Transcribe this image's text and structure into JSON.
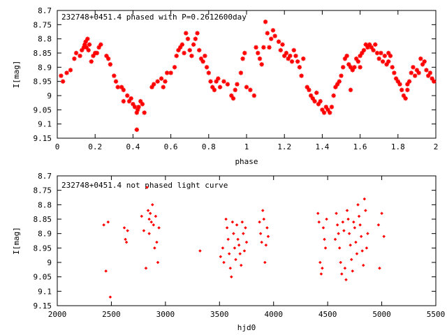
{
  "chart_data": [
    {
      "type": "scatter",
      "title": "232748+0451.4 phased with P=0.2612600day",
      "xlabel": "phase",
      "ylabel": "I[mag]",
      "xlim": [
        0,
        2
      ],
      "ylim": [
        8.7,
        9.15
      ],
      "y_inverted": true,
      "x_ticks": [
        "0",
        "0.2",
        "0.4",
        "0.6",
        "0.8",
        "1",
        "1.2",
        "1.4",
        "1.6",
        "1.8",
        "2"
      ],
      "y_ticks": [
        "8.7",
        "8.75",
        "8.8",
        "8.85",
        "8.9",
        "8.95",
        "9",
        "9.05",
        "9.1",
        "9.15"
      ],
      "marker": "star",
      "color": "#ff0000",
      "points": [
        [
          0.02,
          8.93
        ],
        [
          0.03,
          8.95
        ],
        [
          0.05,
          8.92
        ],
        [
          0.07,
          8.91
        ],
        [
          0.09,
          8.87
        ],
        [
          0.1,
          8.85
        ],
        [
          0.12,
          8.86
        ],
        [
          0.13,
          8.84
        ],
        [
          0.14,
          8.83
        ],
        [
          0.145,
          8.82
        ],
        [
          0.15,
          8.81
        ],
        [
          0.155,
          8.83
        ],
        [
          0.16,
          8.8
        ],
        [
          0.165,
          8.84
        ],
        [
          0.17,
          8.82
        ],
        [
          0.18,
          8.88
        ],
        [
          0.19,
          8.86
        ],
        [
          0.2,
          8.85
        ],
        [
          0.21,
          8.85
        ],
        [
          0.22,
          8.83
        ],
        [
          0.23,
          8.82
        ],
        [
          0.26,
          8.86
        ],
        [
          0.27,
          8.87
        ],
        [
          0.28,
          8.89
        ],
        [
          0.3,
          8.93
        ],
        [
          0.31,
          8.95
        ],
        [
          0.32,
          8.97
        ],
        [
          0.34,
          8.97
        ],
        [
          0.35,
          8.98
        ],
        [
          0.37,
          9.0
        ],
        [
          0.38,
          9.02
        ],
        [
          0.39,
          9.01
        ],
        [
          0.4,
          9.03
        ],
        [
          0.41,
          9.04
        ],
        [
          0.42,
          9.06
        ],
        [
          0.425,
          9.05
        ],
        [
          0.43,
          9.04
        ],
        [
          0.44,
          9.02
        ],
        [
          0.45,
          9.03
        ],
        [
          0.46,
          9.06
        ],
        [
          0.35,
          9.02
        ],
        [
          0.42,
          9.12
        ],
        [
          0.5,
          8.97
        ],
        [
          0.51,
          8.96
        ],
        [
          0.53,
          8.95
        ],
        [
          0.55,
          8.94
        ],
        [
          0.56,
          8.97
        ],
        [
          0.57,
          8.95
        ],
        [
          0.58,
          8.92
        ],
        [
          0.6,
          8.92
        ],
        [
          0.62,
          8.9
        ],
        [
          0.63,
          8.86
        ],
        [
          0.64,
          8.84
        ],
        [
          0.65,
          8.83
        ],
        [
          0.66,
          8.82
        ],
        [
          0.67,
          8.85
        ],
        [
          0.68,
          8.78
        ],
        [
          0.69,
          8.8
        ],
        [
          0.7,
          8.84
        ],
        [
          0.71,
          8.86
        ],
        [
          0.72,
          8.82
        ],
        [
          0.73,
          8.8
        ],
        [
          0.74,
          8.78
        ],
        [
          0.75,
          8.84
        ],
        [
          0.76,
          8.87
        ],
        [
          0.77,
          8.88
        ],
        [
          0.78,
          8.86
        ],
        [
          0.79,
          8.9
        ],
        [
          0.8,
          8.92
        ],
        [
          0.81,
          8.95
        ],
        [
          0.82,
          8.97
        ],
        [
          0.83,
          8.98
        ],
        [
          0.84,
          8.95
        ],
        [
          0.85,
          8.94
        ],
        [
          0.86,
          8.97
        ],
        [
          0.88,
          8.95
        ],
        [
          0.9,
          8.96
        ],
        [
          0.92,
          9.0
        ],
        [
          0.93,
          9.01
        ],
        [
          0.94,
          8.98
        ],
        [
          0.95,
          8.96
        ],
        [
          0.97,
          8.92
        ],
        [
          0.98,
          8.87
        ],
        [
          0.99,
          8.85
        ],
        [
          1.0,
          8.97
        ],
        [
          1.02,
          8.98
        ],
        [
          1.04,
          9.0
        ],
        [
          1.05,
          8.83
        ],
        [
          1.06,
          8.85
        ],
        [
          1.07,
          8.87
        ],
        [
          1.08,
          8.89
        ],
        [
          1.09,
          8.83
        ],
        [
          1.1,
          8.74
        ],
        [
          1.11,
          8.78
        ],
        [
          1.12,
          8.83
        ],
        [
          1.13,
          8.8
        ],
        [
          1.14,
          8.77
        ],
        [
          1.15,
          8.79
        ],
        [
          1.17,
          8.81
        ],
        [
          1.18,
          8.84
        ],
        [
          1.19,
          8.82
        ],
        [
          1.2,
          8.86
        ],
        [
          1.21,
          8.85
        ],
        [
          1.22,
          8.87
        ],
        [
          1.23,
          8.86
        ],
        [
          1.24,
          8.88
        ],
        [
          1.25,
          8.84
        ],
        [
          1.26,
          8.86
        ],
        [
          1.27,
          8.88
        ],
        [
          1.28,
          8.9
        ],
        [
          1.29,
          8.93
        ],
        [
          1.3,
          8.87
        ],
        [
          1.32,
          8.97
        ],
        [
          1.33,
          8.98
        ],
        [
          1.34,
          9.0
        ],
        [
          1.35,
          9.01
        ],
        [
          1.36,
          9.02
        ],
        [
          1.37,
          8.99
        ],
        [
          1.38,
          9.03
        ],
        [
          1.39,
          9.02
        ],
        [
          1.4,
          9.05
        ],
        [
          1.41,
          9.06
        ],
        [
          1.42,
          9.04
        ],
        [
          1.43,
          9.05
        ],
        [
          1.44,
          9.06
        ],
        [
          1.45,
          9.04
        ],
        [
          1.46,
          9.0
        ],
        [
          1.47,
          8.97
        ],
        [
          1.48,
          8.96
        ],
        [
          1.49,
          8.95
        ],
        [
          1.5,
          8.93
        ],
        [
          1.51,
          8.9
        ],
        [
          1.52,
          8.87
        ],
        [
          1.53,
          8.86
        ],
        [
          1.54,
          8.89
        ],
        [
          1.55,
          8.9
        ],
        [
          1.56,
          8.91
        ],
        [
          1.57,
          8.9
        ],
        [
          1.58,
          8.87
        ],
        [
          1.59,
          8.88
        ],
        [
          1.6,
          8.86
        ],
        [
          1.61,
          8.85
        ],
        [
          1.62,
          8.84
        ],
        [
          1.63,
          8.82
        ],
        [
          1.64,
          8.83
        ],
        [
          1.65,
          8.82
        ],
        [
          1.66,
          8.83
        ],
        [
          1.67,
          8.84
        ],
        [
          1.68,
          8.82
        ],
        [
          1.69,
          8.85
        ],
        [
          1.7,
          8.87
        ],
        [
          1.71,
          8.85
        ],
        [
          1.72,
          8.88
        ],
        [
          1.73,
          8.86
        ],
        [
          1.74,
          8.89
        ],
        [
          1.75,
          8.85
        ],
        [
          1.76,
          8.86
        ],
        [
          1.77,
          8.9
        ],
        [
          1.78,
          8.92
        ],
        [
          1.79,
          8.94
        ],
        [
          1.8,
          8.95
        ],
        [
          1.81,
          8.96
        ],
        [
          1.82,
          8.98
        ],
        [
          1.83,
          9.0
        ],
        [
          1.84,
          9.01
        ],
        [
          1.85,
          8.98
        ],
        [
          1.86,
          8.95
        ],
        [
          1.87,
          8.92
        ],
        [
          1.88,
          8.9
        ],
        [
          1.89,
          8.93
        ],
        [
          1.9,
          8.91
        ],
        [
          1.91,
          8.92
        ],
        [
          1.92,
          8.87
        ],
        [
          1.93,
          8.89
        ],
        [
          1.94,
          8.88
        ],
        [
          1.95,
          8.91
        ],
        [
          1.96,
          8.93
        ],
        [
          1.97,
          8.92
        ],
        [
          1.98,
          8.94
        ],
        [
          1.99,
          8.95
        ],
        [
          1.55,
          8.98
        ],
        [
          1.6,
          8.9
        ],
        [
          1.75,
          8.88
        ],
        [
          1.85,
          8.96
        ]
      ]
    },
    {
      "type": "scatter",
      "title": "232748+0451.4 not phased light curve",
      "xlabel": "hjd0",
      "ylabel": "I[mag]",
      "xlim": [
        2000,
        5500
      ],
      "ylim": [
        8.7,
        9.15
      ],
      "y_inverted": true,
      "x_ticks": [
        "2000",
        "2500",
        "3000",
        "3500",
        "4000",
        "4500",
        "5000",
        "5500"
      ],
      "y_ticks": [
        "8.7",
        "8.75",
        "8.8",
        "8.85",
        "8.9",
        "8.95",
        "9",
        "9.05",
        "9.1",
        "9.15"
      ],
      "marker": "diamond",
      "color": "#ff0000",
      "points": [
        [
          2430,
          8.87
        ],
        [
          2450,
          9.03
        ],
        [
          2470,
          8.86
        ],
        [
          2490,
          9.12
        ],
        [
          2620,
          8.88
        ],
        [
          2630,
          8.92
        ],
        [
          2640,
          8.93
        ],
        [
          2650,
          8.89
        ],
        [
          2780,
          8.84
        ],
        [
          2800,
          8.89
        ],
        [
          2820,
          9.02
        ],
        [
          2830,
          8.74
        ],
        [
          2840,
          8.82
        ],
        [
          2850,
          8.85
        ],
        [
          2850,
          8.9
        ],
        [
          2860,
          8.83
        ],
        [
          2870,
          8.86
        ],
        [
          2880,
          8.8
        ],
        [
          2890,
          8.87
        ],
        [
          2900,
          8.95
        ],
        [
          2910,
          8.84
        ],
        [
          2920,
          8.93
        ],
        [
          2930,
          9.0
        ],
        [
          2940,
          8.88
        ],
        [
          3320,
          8.96
        ],
        [
          3510,
          8.98
        ],
        [
          3530,
          8.95
        ],
        [
          3540,
          9.0
        ],
        [
          3560,
          8.85
        ],
        [
          3570,
          8.88
        ],
        [
          3580,
          8.92
        ],
        [
          3590,
          8.97
        ],
        [
          3600,
          9.02
        ],
        [
          3610,
          9.05
        ],
        [
          3620,
          8.86
        ],
        [
          3630,
          8.9
        ],
        [
          3640,
          8.95
        ],
        [
          3650,
          8.99
        ],
        [
          3660,
          8.87
        ],
        [
          3670,
          8.92
        ],
        [
          3680,
          8.94
        ],
        [
          3690,
          8.97
        ],
        [
          3700,
          9.01
        ],
        [
          3710,
          8.86
        ],
        [
          3720,
          8.9
        ],
        [
          3730,
          8.96
        ],
        [
          3740,
          8.88
        ],
        [
          3750,
          8.93
        ],
        [
          3870,
          8.86
        ],
        [
          3880,
          8.9
        ],
        [
          3890,
          8.93
        ],
        [
          3900,
          8.82
        ],
        [
          3910,
          8.85
        ],
        [
          3920,
          9.0
        ],
        [
          3930,
          8.94
        ],
        [
          3940,
          8.88
        ],
        [
          3950,
          8.91
        ],
        [
          4410,
          8.83
        ],
        [
          4420,
          8.86
        ],
        [
          4430,
          9.0
        ],
        [
          4440,
          9.04
        ],
        [
          4450,
          9.02
        ],
        [
          4460,
          8.88
        ],
        [
          4470,
          8.92
        ],
        [
          4480,
          8.95
        ],
        [
          4490,
          8.85
        ],
        [
          4570,
          8.92
        ],
        [
          4580,
          8.83
        ],
        [
          4590,
          8.87
        ],
        [
          4600,
          8.9
        ],
        [
          4610,
          8.95
        ],
        [
          4620,
          9.0
        ],
        [
          4630,
          9.04
        ],
        [
          4640,
          8.86
        ],
        [
          4650,
          8.89
        ],
        [
          4660,
          9.02
        ],
        [
          4670,
          9.06
        ],
        [
          4680,
          8.82
        ],
        [
          4690,
          8.85
        ],
        [
          4700,
          8.9
        ],
        [
          4710,
          8.94
        ],
        [
          4720,
          8.99
        ],
        [
          4730,
          9.03
        ],
        [
          4740,
          8.86
        ],
        [
          4750,
          8.88
        ],
        [
          4760,
          8.93
        ],
        [
          4770,
          8.97
        ],
        [
          4780,
          8.8
        ],
        [
          4790,
          8.84
        ],
        [
          4800,
          8.87
        ],
        [
          4810,
          8.91
        ],
        [
          4820,
          8.96
        ],
        [
          4830,
          9.01
        ],
        [
          4840,
          8.78
        ],
        [
          4850,
          8.82
        ],
        [
          4860,
          8.95
        ],
        [
          4870,
          8.9
        ],
        [
          4970,
          8.87
        ],
        [
          4980,
          9.02
        ],
        [
          5000,
          8.83
        ],
        [
          5020,
          8.91
        ]
      ]
    }
  ]
}
